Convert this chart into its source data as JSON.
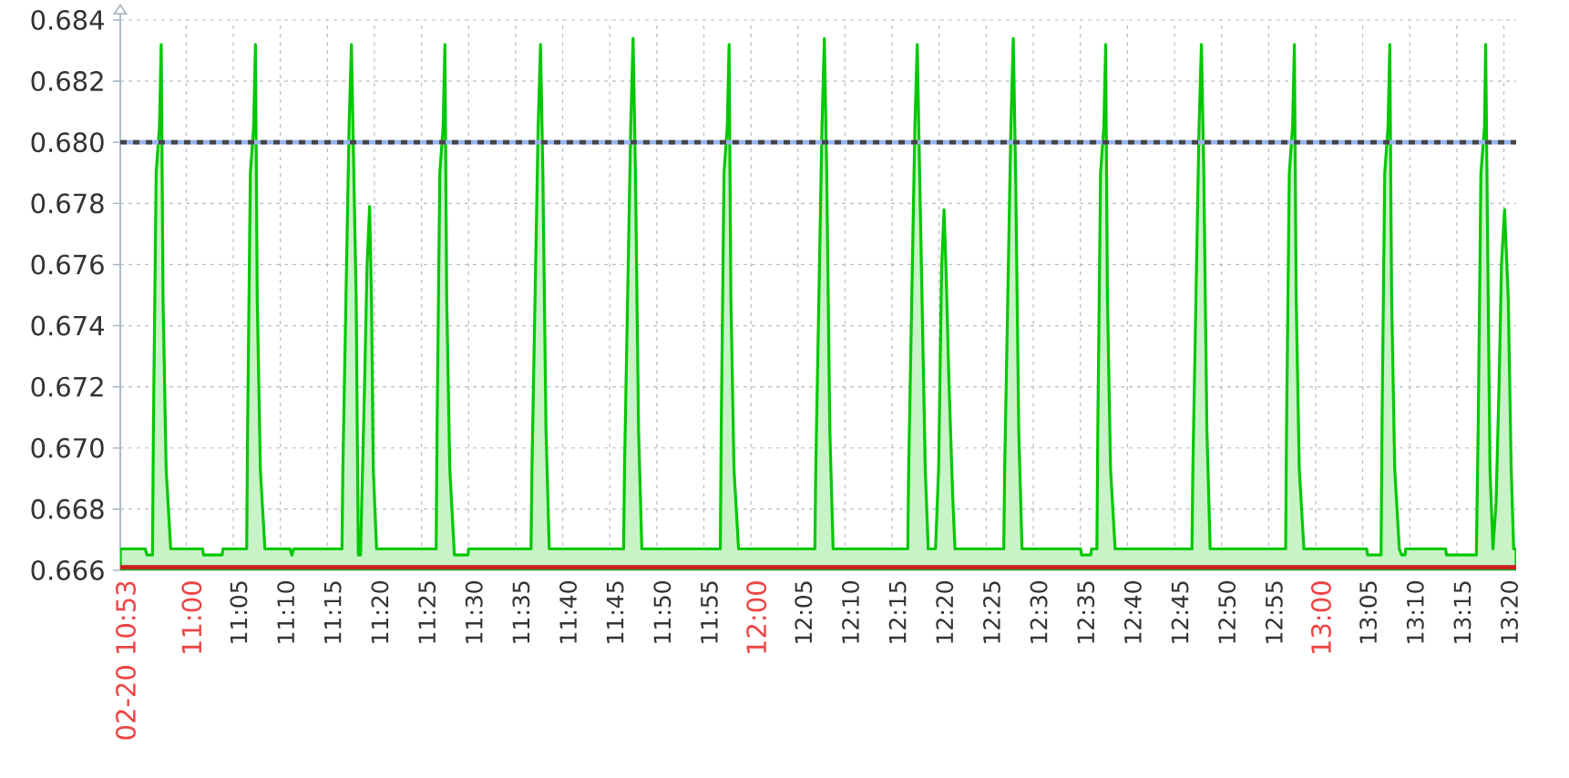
{
  "chart_data": {
    "type": "area",
    "color": "#00c800",
    "grid": true,
    "xlim": [
      10.8833,
      13.355
    ],
    "ylim": [
      0.666,
      0.684
    ],
    "xticks": [
      {
        "value": 10.8833,
        "label": "02-20 10:53"
      },
      {
        "value": 11,
        "label": "11:00"
      },
      {
        "value": 11.0833,
        "label": "11:05"
      },
      {
        "value": 11.1667,
        "label": "11:10"
      },
      {
        "value": 11.25,
        "label": "11:15"
      },
      {
        "value": 11.3333,
        "label": "11:20"
      },
      {
        "value": 11.4167,
        "label": "11:25"
      },
      {
        "value": 11.5,
        "label": "11:30"
      },
      {
        "value": 11.5833,
        "label": "11:35"
      },
      {
        "value": 11.6667,
        "label": "11:40"
      },
      {
        "value": 11.75,
        "label": "11:45"
      },
      {
        "value": 11.8333,
        "label": "11:50"
      },
      {
        "value": 11.9167,
        "label": "11:55"
      },
      {
        "value": 12,
        "label": "12:00"
      },
      {
        "value": 12.0833,
        "label": "12:05"
      },
      {
        "value": 12.1667,
        "label": "12:10"
      },
      {
        "value": 12.25,
        "label": "12:15"
      },
      {
        "value": 12.3333,
        "label": "12:20"
      },
      {
        "value": 12.4167,
        "label": "12:25"
      },
      {
        "value": 12.5,
        "label": "12:30"
      },
      {
        "value": 12.5833,
        "label": "12:35"
      },
      {
        "value": 12.6667,
        "label": "12:40"
      },
      {
        "value": 12.75,
        "label": "12:45"
      },
      {
        "value": 12.8333,
        "label": "12:50"
      },
      {
        "value": 12.9167,
        "label": "12:55"
      },
      {
        "value": 13,
        "label": "13:00"
      },
      {
        "value": 13.0833,
        "label": "13:05"
      },
      {
        "value": 13.1667,
        "label": "13:10"
      },
      {
        "value": 13.25,
        "label": "13:15"
      },
      {
        "value": 13.3333,
        "label": "13:20"
      }
    ],
    "yticks": [
      0.666,
      0.668,
      {
        "value": 0.67,
        "label": "0.670"
      },
      0.672,
      0.674,
      0.676,
      0.678,
      {
        "value": 0.68,
        "label": "0.680"
      },
      0.682,
      0.684
    ],
    "ref_lines": [
      {
        "axis": "y",
        "value": 0.68,
        "color": "#96b4f0",
        "line_style": "solid"
      },
      {
        "axis": "y",
        "value": 0.68,
        "color": "#444444",
        "line_style": "dashed"
      },
      {
        "axis": "y",
        "value": 0.6661,
        "color": "#cc2020",
        "line_style": "solid"
      }
    ],
    "x": [
      10.8833,
      10.9274,
      10.9306,
      10.9403,
      10.9419,
      10.9468,
      10.9526,
      10.9558,
      10.959,
      10.9645,
      10.9726,
      11.029,
      11.0306,
      11.0635,
      11.0652,
      11.1071,
      11.1087,
      11.1136,
      11.1194,
      11.1226,
      11.1258,
      11.1313,
      11.1394,
      11.1839,
      11.1871,
      11.1903,
      11.2758,
      11.2774,
      11.2829,
      11.2884,
      11.2926,
      11.2968,
      11.301,
      11.3048,
      11.3087,
      11.3113,
      11.3161,
      11.3203,
      11.3248,
      11.328,
      11.3313,
      11.3371,
      11.4426,
      11.4442,
      11.4491,
      11.4549,
      11.4581,
      11.4613,
      11.4668,
      11.4749,
      11.499,
      11.5,
      11.6106,
      11.6122,
      11.6177,
      11.6232,
      11.6274,
      11.6316,
      11.6371,
      11.6429,
      11.7745,
      11.7761,
      11.7816,
      11.7871,
      11.7913,
      11.7955,
      11.801,
      11.8068,
      11.9458,
      11.9474,
      11.9523,
      11.9581,
      11.9613,
      11.9645,
      11.97,
      11.9781,
      12.1132,
      12.1148,
      12.1203,
      12.1258,
      12.13,
      12.1342,
      12.1397,
      12.1455,
      12.2777,
      12.2793,
      12.2848,
      12.2903,
      12.2945,
      12.2987,
      12.3087,
      12.3139,
      12.3268,
      12.3323,
      12.3377,
      12.3419,
      12.3452,
      12.3506,
      12.3571,
      12.3613,
      12.4477,
      12.4493,
      12.4548,
      12.4603,
      12.4645,
      12.4687,
      12.4742,
      12.48,
      12.5839,
      12.5855,
      12.6016,
      12.6032,
      12.6126,
      12.6142,
      12.6191,
      12.6249,
      12.6281,
      12.6313,
      12.6368,
      12.6449,
      12.7809,
      12.7825,
      12.788,
      12.7935,
      12.7977,
      12.8019,
      12.8074,
      12.8132,
      12.9468,
      12.9484,
      12.9533,
      12.9591,
      12.9623,
      12.9655,
      12.971,
      12.9791,
      13.0903,
      13.0919,
      13.1158,
      13.1174,
      13.1223,
      13.1281,
      13.1313,
      13.1345,
      13.14,
      13.1481,
      13.1523,
      13.1583,
      13.1594,
      13.2301,
      13.2316,
      13.2845,
      13.2877,
      13.2926,
      13.299,
      13.301,
      13.3055,
      13.3087,
      13.3139,
      13.3194,
      13.3248,
      13.329,
      13.3345,
      13.341,
      13.3461,
      13.3506,
      13.355
    ],
    "values": [
      0.6667,
      0.6667,
      0.6665,
      0.6665,
      0.6706,
      0.679,
      0.6805,
      0.6832,
      0.6749,
      0.6693,
      0.6667,
      0.6667,
      0.6665,
      0.6665,
      0.6667,
      0.6667,
      0.6706,
      0.679,
      0.6805,
      0.6832,
      0.6749,
      0.6693,
      0.6667,
      0.6667,
      0.6665,
      0.6667,
      0.6667,
      0.6693,
      0.6749,
      0.6805,
      0.6832,
      0.679,
      0.6749,
      0.6665,
      0.6665,
      0.6686,
      0.6723,
      0.676,
      0.6779,
      0.6749,
      0.6693,
      0.6667,
      0.6667,
      0.6706,
      0.679,
      0.6805,
      0.6832,
      0.6749,
      0.6693,
      0.6665,
      0.6665,
      0.6667,
      0.6667,
      0.6693,
      0.6749,
      0.6805,
      0.6832,
      0.679,
      0.6706,
      0.6667,
      0.6667,
      0.6693,
      0.6749,
      0.6805,
      0.6834,
      0.679,
      0.6706,
      0.6667,
      0.6667,
      0.6706,
      0.679,
      0.6805,
      0.6832,
      0.6749,
      0.6693,
      0.6667,
      0.6667,
      0.6693,
      0.6749,
      0.6805,
      0.6834,
      0.679,
      0.6706,
      0.6667,
      0.6667,
      0.6693,
      0.6749,
      0.6805,
      0.6832,
      0.679,
      0.6693,
      0.6667,
      0.6667,
      0.6693,
      0.6759,
      0.6778,
      0.676,
      0.6722,
      0.6685,
      0.6667,
      0.6667,
      0.6693,
      0.6749,
      0.6805,
      0.6834,
      0.679,
      0.6706,
      0.6667,
      0.6667,
      0.6665,
      0.6665,
      0.6667,
      0.6667,
      0.6706,
      0.679,
      0.6805,
      0.6832,
      0.6749,
      0.6693,
      0.6667,
      0.6667,
      0.6693,
      0.6749,
      0.6805,
      0.6832,
      0.679,
      0.6706,
      0.6667,
      0.6667,
      0.6706,
      0.679,
      0.6805,
      0.6832,
      0.6749,
      0.6693,
      0.6667,
      0.6667,
      0.6665,
      0.6665,
      0.6706,
      0.679,
      0.6805,
      0.6832,
      0.6749,
      0.6693,
      0.6667,
      0.6665,
      0.6665,
      0.6667,
      0.6667,
      0.6665,
      0.6665,
      0.6706,
      0.679,
      0.6805,
      0.6832,
      0.6749,
      0.6693,
      0.6667,
      0.6682,
      0.6721,
      0.676,
      0.6778,
      0.6749,
      0.6694,
      0.6667,
      0.6667
    ]
  }
}
